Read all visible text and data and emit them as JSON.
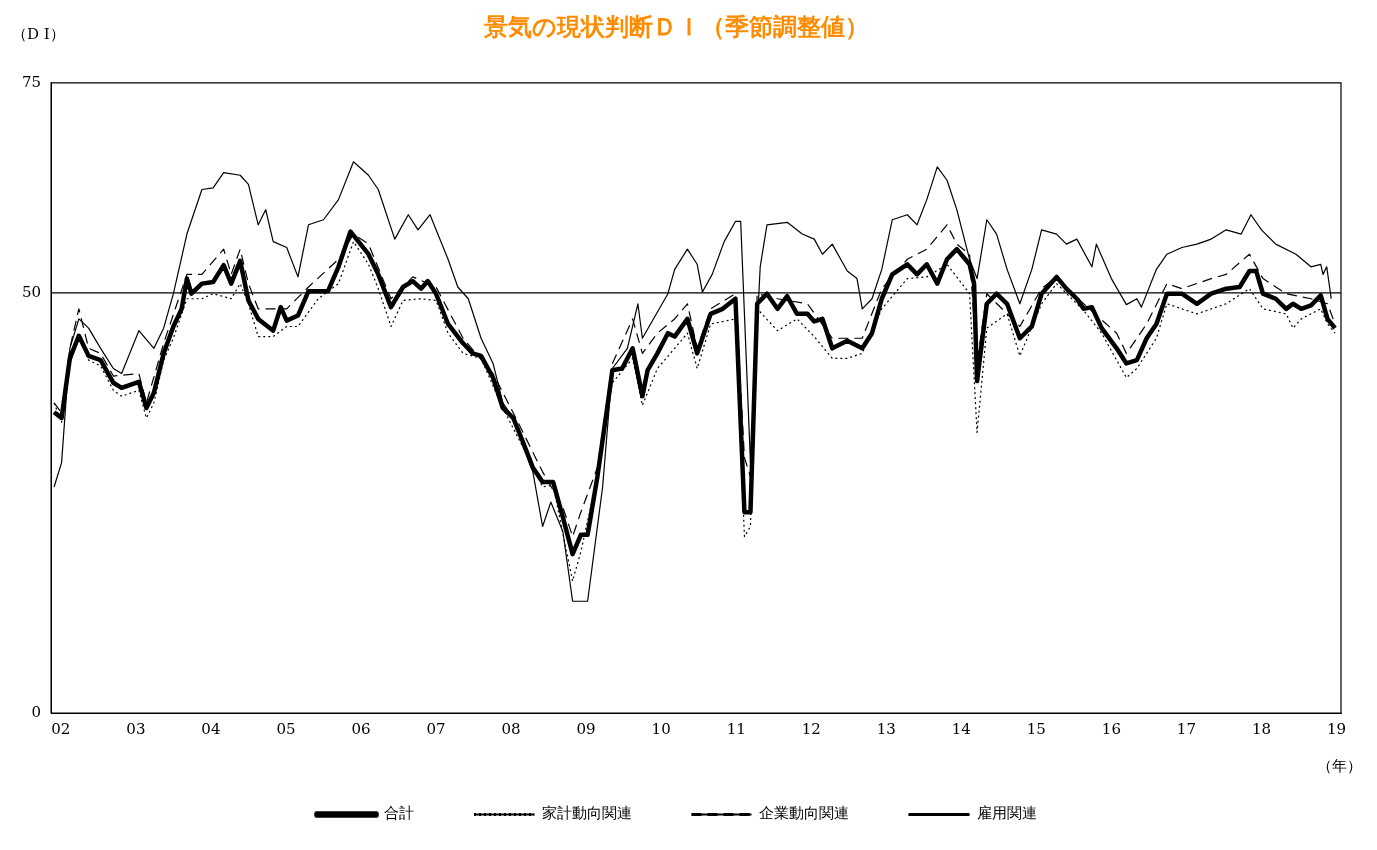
{
  "chart_data": {
    "type": "line",
    "title": "景気の現状判断ＤＩ（季節調整値）",
    "ylabel": "（D I）",
    "xlabel": "（年）",
    "xlim": [
      2001.87,
      2019.06
    ],
    "xticks": [
      {
        "value": 2002,
        "label": "02"
      },
      {
        "value": 2003,
        "label": "03"
      },
      {
        "value": 2004,
        "label": "04"
      },
      {
        "value": 2005,
        "label": "05"
      },
      {
        "value": 2006,
        "label": "06"
      },
      {
        "value": 2007,
        "label": "07"
      },
      {
        "value": 2008,
        "label": "08"
      },
      {
        "value": 2009,
        "label": "09"
      },
      {
        "value": 2010,
        "label": "10"
      },
      {
        "value": 2011,
        "label": "11"
      },
      {
        "value": 2012,
        "label": "12"
      },
      {
        "value": 2013,
        "label": "13"
      },
      {
        "value": 2014,
        "label": "14"
      },
      {
        "value": 2015,
        "label": "15"
      },
      {
        "value": 2016,
        "label": "16"
      },
      {
        "value": 2017,
        "label": "17"
      },
      {
        "value": 2018,
        "label": "18"
      },
      {
        "value": 2019,
        "label": "19"
      }
    ],
    "ylim": [
      0,
      75
    ],
    "yticks": [
      0,
      50,
      75
    ],
    "grid": false,
    "legend": "bottom",
    "marker": "none",
    "ref_lines": [
      {
        "axis": "y",
        "value": 50,
        "color": "#000000"
      }
    ],
    "series": [
      {
        "name": "合計",
        "color": "#000000",
        "line_style": "solid",
        "x": [
          2001.91,
          2002.01,
          2002.12,
          2002.24,
          2002.37,
          2002.53,
          2002.7,
          2002.81,
          2003.04,
          2003.14,
          2003.24,
          2003.37,
          2003.5,
          2003.61,
          2003.68,
          2003.74,
          2003.88,
          2004.03,
          2004.17,
          2004.27,
          2004.39,
          2004.5,
          2004.63,
          2004.83,
          2004.93,
          2005.01,
          2005.16,
          2005.3,
          2005.43,
          2005.56,
          2005.7,
          2005.86,
          2006.1,
          2006.23,
          2006.4,
          2006.56,
          2006.69,
          2006.8,
          2006.89,
          2007.0,
          2007.16,
          2007.36,
          2007.49,
          2007.6,
          2007.76,
          2007.89,
          2008.03,
          2008.16,
          2008.29,
          2008.42,
          2008.56,
          2008.69,
          2008.82,
          2008.93,
          2009.02,
          2009.15,
          2009.29,
          2009.35,
          2009.48,
          2009.62,
          2009.75,
          2009.82,
          2009.95,
          2010.09,
          2010.18,
          2010.35,
          2010.48,
          2010.66,
          2010.82,
          2010.99,
          2011.11,
          2011.19,
          2011.28,
          2011.41,
          2011.55,
          2011.68,
          2011.81,
          2011.95,
          2012.04,
          2012.15,
          2012.28,
          2012.48,
          2012.68,
          2012.81,
          2012.94,
          2013.08,
          2013.28,
          2013.41,
          2013.54,
          2013.68,
          2013.81,
          2013.94,
          2014.11,
          2014.17,
          2014.21,
          2014.34,
          2014.47,
          2014.61,
          2014.78,
          2014.94,
          2015.07,
          2015.27,
          2015.4,
          2015.54,
          2015.63,
          2015.74,
          2015.87,
          2016.07,
          2016.2,
          2016.34,
          2016.47,
          2016.6,
          2016.74,
          2016.94,
          2017.14,
          2017.33,
          2017.53,
          2017.71,
          2017.84,
          2017.93,
          2018.02,
          2018.19,
          2018.33,
          2018.42,
          2018.53,
          2018.66,
          2018.79,
          2018.88,
          2018.98
        ],
        "values": [
          35.8,
          35.1,
          42.2,
          44.9,
          42.5,
          42.0,
          39.3,
          38.7,
          39.4,
          36.3,
          38.1,
          42.8,
          46.0,
          48.1,
          51.7,
          49.9,
          51.1,
          51.3,
          53.3,
          51.1,
          53.8,
          49.1,
          46.9,
          45.5,
          48.3,
          46.7,
          47.3,
          50.2,
          50.2,
          50.2,
          53.1,
          57.3,
          54.6,
          52.2,
          48.3,
          50.7,
          51.4,
          50.5,
          51.4,
          49.9,
          46.3,
          44.0,
          42.8,
          42.5,
          39.9,
          36.3,
          35.1,
          32.2,
          29.2,
          27.5,
          27.5,
          23.3,
          18.9,
          21.2,
          21.2,
          28.1,
          36.9,
          40.8,
          41.0,
          43.4,
          37.7,
          40.8,
          42.8,
          45.2,
          44.8,
          46.9,
          42.8,
          47.5,
          48.1,
          49.3,
          23.9,
          23.9,
          48.7,
          49.9,
          48.1,
          49.6,
          47.5,
          47.5,
          46.6,
          46.9,
          43.4,
          44.3,
          43.4,
          45.2,
          49.3,
          52.2,
          53.4,
          52.2,
          53.4,
          51.1,
          54.0,
          55.2,
          53.4,
          51.1,
          39.5,
          48.7,
          49.9,
          48.7,
          44.6,
          46.0,
          49.9,
          51.9,
          50.5,
          49.3,
          48.1,
          48.3,
          45.8,
          43.4,
          41.6,
          42.0,
          44.6,
          46.3,
          49.9,
          49.9,
          48.7,
          49.9,
          50.5,
          50.7,
          52.6,
          52.6,
          49.9,
          49.3,
          48.1,
          48.7,
          48.1,
          48.5,
          49.7,
          46.9,
          45.8
        ]
      },
      {
        "name": "家計動向関連",
        "color": "#000000",
        "line_style": "dotted",
        "x": [
          2001.91,
          2002.01,
          2002.12,
          2002.24,
          2002.37,
          2002.53,
          2002.7,
          2002.81,
          2003.04,
          2003.14,
          2003.24,
          2003.37,
          2003.5,
          2003.68,
          2003.88,
          2004.03,
          2004.27,
          2004.39,
          2004.5,
          2004.63,
          2004.83,
          2005.01,
          2005.16,
          2005.43,
          2005.7,
          2005.9,
          2006.1,
          2006.23,
          2006.4,
          2006.56,
          2006.8,
          2007.0,
          2007.16,
          2007.36,
          2007.6,
          2007.89,
          2008.16,
          2008.42,
          2008.56,
          2008.82,
          2008.93,
          2009.15,
          2009.35,
          2009.62,
          2009.75,
          2009.95,
          2010.18,
          2010.35,
          2010.48,
          2010.66,
          2010.99,
          2011.11,
          2011.19,
          2011.28,
          2011.55,
          2011.81,
          2012.04,
          2012.28,
          2012.48,
          2012.68,
          2012.94,
          2013.28,
          2013.54,
          2013.81,
          2014.11,
          2014.21,
          2014.34,
          2014.61,
          2014.78,
          2015.07,
          2015.27,
          2015.63,
          2015.87,
          2016.2,
          2016.34,
          2016.6,
          2016.74,
          2017.14,
          2017.53,
          2017.84,
          2018.02,
          2018.33,
          2018.42,
          2018.53,
          2018.79,
          2018.88,
          2018.98
        ],
        "values": [
          36.9,
          34.6,
          41.6,
          44.6,
          42.0,
          41.3,
          38.4,
          37.7,
          38.4,
          35.1,
          36.9,
          42.0,
          44.6,
          49.3,
          49.3,
          49.9,
          49.3,
          51.1,
          48.7,
          44.8,
          44.8,
          46.0,
          46.0,
          49.3,
          51.1,
          56.1,
          53.4,
          50.5,
          46.0,
          49.1,
          49.3,
          49.1,
          45.2,
          42.8,
          42.2,
          36.3,
          31.6,
          26.9,
          27.1,
          15.7,
          19.2,
          28.1,
          39.3,
          42.2,
          36.6,
          41.0,
          43.4,
          45.2,
          41.0,
          46.3,
          46.9,
          21.0,
          22.2,
          48.1,
          45.5,
          46.9,
          44.8,
          42.2,
          42.2,
          42.8,
          48.1,
          51.7,
          51.9,
          53.4,
          49.9,
          33.4,
          45.8,
          47.5,
          42.5,
          48.7,
          51.1,
          47.9,
          45.2,
          39.9,
          41.0,
          44.6,
          48.7,
          47.5,
          48.7,
          50.5,
          48.1,
          47.5,
          45.8,
          46.9,
          48.1,
          46.3,
          45.2
        ]
      },
      {
        "name": "企業動向関連",
        "color": "#000000",
        "line_style": "dashed",
        "x": [
          2001.91,
          2002.01,
          2002.12,
          2002.24,
          2002.37,
          2002.53,
          2002.7,
          2003.04,
          2003.14,
          2003.37,
          2003.68,
          2003.88,
          2004.17,
          2004.27,
          2004.39,
          2004.5,
          2004.63,
          2005.01,
          2005.3,
          2005.7,
          2005.9,
          2006.1,
          2006.4,
          2006.69,
          2007.0,
          2007.36,
          2007.76,
          2008.03,
          2008.42,
          2008.69,
          2008.82,
          2008.93,
          2009.15,
          2009.35,
          2009.62,
          2009.75,
          2009.95,
          2010.18,
          2010.35,
          2010.48,
          2010.66,
          2010.99,
          2011.11,
          2011.19,
          2011.28,
          2011.55,
          2011.95,
          2012.28,
          2012.68,
          2012.94,
          2013.28,
          2013.54,
          2013.81,
          2013.94,
          2014.11,
          2014.21,
          2014.34,
          2014.78,
          2015.07,
          2015.27,
          2015.63,
          2016.07,
          2016.2,
          2016.47,
          2016.74,
          2016.94,
          2017.33,
          2017.53,
          2017.84,
          2018.02,
          2018.33,
          2018.66,
          2018.88,
          2018.98
        ],
        "values": [
          36.9,
          35.7,
          43.4,
          48.1,
          43.4,
          42.8,
          40.1,
          40.4,
          36.9,
          44.0,
          52.2,
          52.2,
          55.2,
          52.2,
          55.2,
          51.1,
          48.1,
          48.1,
          50.7,
          54.0,
          57.0,
          55.8,
          49.3,
          51.9,
          50.7,
          44.6,
          40.4,
          35.7,
          28.7,
          24.5,
          21.0,
          23.9,
          29.2,
          41.6,
          46.9,
          42.8,
          45.2,
          46.9,
          48.7,
          43.4,
          48.1,
          49.9,
          30.4,
          28.1,
          49.9,
          49.3,
          48.7,
          44.6,
          44.6,
          50.5,
          54.0,
          55.2,
          58.1,
          55.8,
          54.6,
          41.6,
          49.9,
          46.0,
          50.5,
          51.9,
          48.7,
          45.2,
          42.8,
          46.3,
          51.1,
          50.5,
          51.7,
          52.2,
          54.6,
          51.7,
          49.9,
          49.3,
          48.7,
          46.3
        ]
      },
      {
        "name": "雇用関連",
        "color": "#000000",
        "line_style": "solid",
        "x": [
          2001.91,
          2002.01,
          2002.12,
          2002.24,
          2002.37,
          2002.53,
          2002.7,
          2002.81,
          2003.04,
          2003.24,
          2003.37,
          2003.5,
          2003.68,
          2003.88,
          2004.03,
          2004.17,
          2004.39,
          2004.5,
          2004.63,
          2004.73,
          2004.83,
          2005.01,
          2005.16,
          2005.3,
          2005.5,
          2005.7,
          2005.9,
          2006.1,
          2006.23,
          2006.45,
          2006.63,
          2006.76,
          2006.92,
          2007.16,
          2007.29,
          2007.43,
          2007.6,
          2007.76,
          2007.89,
          2008.03,
          2008.29,
          2008.42,
          2008.53,
          2008.69,
          2008.82,
          2009.02,
          2009.22,
          2009.35,
          2009.55,
          2009.69,
          2009.75,
          2010.09,
          2010.18,
          2010.35,
          2010.48,
          2010.55,
          2010.68,
          2010.84,
          2010.99,
          2011.06,
          2011.19,
          2011.32,
          2011.41,
          2011.68,
          2011.88,
          2012.04,
          2012.15,
          2012.28,
          2012.48,
          2012.61,
          2012.68,
          2012.81,
          2012.94,
          2013.08,
          2013.28,
          2013.41,
          2013.54,
          2013.68,
          2013.81,
          2013.94,
          2014.11,
          2014.21,
          2014.34,
          2014.47,
          2014.61,
          2014.78,
          2014.94,
          2015.07,
          2015.27,
          2015.4,
          2015.54,
          2015.74,
          2015.8,
          2016.0,
          2016.2,
          2016.34,
          2016.4,
          2016.6,
          2016.74,
          2016.94,
          2017.14,
          2017.33,
          2017.53,
          2017.73,
          2017.86,
          2018.0,
          2018.19,
          2018.46,
          2018.66,
          2018.79,
          2018.82,
          2018.87,
          2018.93
        ],
        "values": [
          26.9,
          29.8,
          43.4,
          46.9,
          45.8,
          43.4,
          41.0,
          40.4,
          45.5,
          43.4,
          45.8,
          49.9,
          57.0,
          62.3,
          62.5,
          64.3,
          64.0,
          62.9,
          58.1,
          59.9,
          56.1,
          55.4,
          51.9,
          58.1,
          58.7,
          61.1,
          65.6,
          64.0,
          62.3,
          56.4,
          59.3,
          57.5,
          59.3,
          54.0,
          50.7,
          49.3,
          44.6,
          41.6,
          36.9,
          35.1,
          28.7,
          22.2,
          25.1,
          21.6,
          13.3,
          13.3,
          26.9,
          41.0,
          43.4,
          48.7,
          44.6,
          49.9,
          52.8,
          55.2,
          53.4,
          50.1,
          52.2,
          56.1,
          58.5,
          58.5,
          29.8,
          53.1,
          58.1,
          58.4,
          57.0,
          56.4,
          54.6,
          55.8,
          52.6,
          51.7,
          48.1,
          49.3,
          52.8,
          58.7,
          59.3,
          58.1,
          61.1,
          65.0,
          63.4,
          59.9,
          54.0,
          51.7,
          58.7,
          57.0,
          52.8,
          48.7,
          52.8,
          57.5,
          57.0,
          55.8,
          56.4,
          53.1,
          55.8,
          51.7,
          48.6,
          49.3,
          48.3,
          52.8,
          54.6,
          55.4,
          55.8,
          56.4,
          57.5,
          57.0,
          59.3,
          57.5,
          55.8,
          54.6,
          53.1,
          53.4,
          52.2,
          53.1,
          49.3
        ]
      }
    ]
  }
}
